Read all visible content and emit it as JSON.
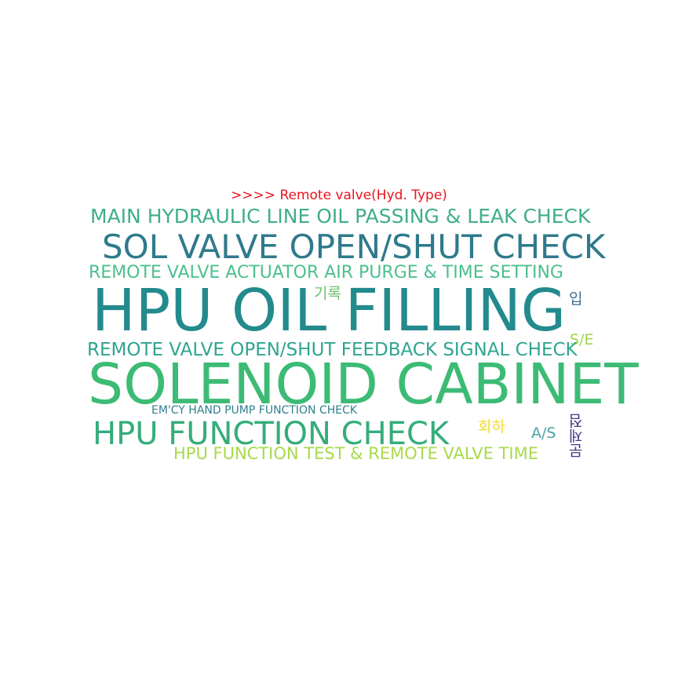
{
  "title": {
    "text": ">>>> Remote valve(Hyd. Type)",
    "color": "#e8141c"
  },
  "words": [
    {
      "id": "main-hydraulic",
      "text": "MAIN HYDRAULIC LINE OIL PASSING & LEAK CHECK",
      "color": "#3fae8a"
    },
    {
      "id": "sol-valve",
      "text": "SOL VALVE OPEN/SHUT CHECK",
      "color": "#2f7a8c"
    },
    {
      "id": "remote-valve-actuator",
      "text": "REMOTE VALVE ACTUATOR AIR PURGE & TIME SETTING",
      "color": "#4cbf8f"
    },
    {
      "id": "hpu-oil-filling",
      "text": "HPU OIL FILLING",
      "color": "#238a8d"
    },
    {
      "id": "gilok",
      "text": "기록",
      "color": "#6cc06a"
    },
    {
      "id": "ip",
      "text": "입",
      "color": "#3f6f8f"
    },
    {
      "id": "se",
      "text": "S/E",
      "color": "#9cd54a"
    },
    {
      "id": "remote-valve-feedback",
      "text": "REMOTE VALVE OPEN/SHUT FEEDBACK SIGNAL CHECK",
      "color": "#2fa58f"
    },
    {
      "id": "solenoid-cabinet",
      "text": "SOLENOID CABINET",
      "color": "#3cbb75"
    },
    {
      "id": "emcy-hand-pump",
      "text": "EM'CY HAND PUMP FUNCTION CHECK",
      "color": "#2f7f8e"
    },
    {
      "id": "hpu-function-check",
      "text": "HPU FUNCTION CHECK",
      "color": "#35ad7a"
    },
    {
      "id": "hoeha",
      "text": "회하",
      "color": "#f2dd2c"
    },
    {
      "id": "as",
      "text": "A/S",
      "color": "#4aa3a0"
    },
    {
      "id": "munjejeom",
      "text": "문제점",
      "color": "#453781"
    },
    {
      "id": "hpu-function-test",
      "text": "HPU FUNCTION TEST & REMOTE VALVE TIME",
      "color": "#a8da4a"
    }
  ]
}
